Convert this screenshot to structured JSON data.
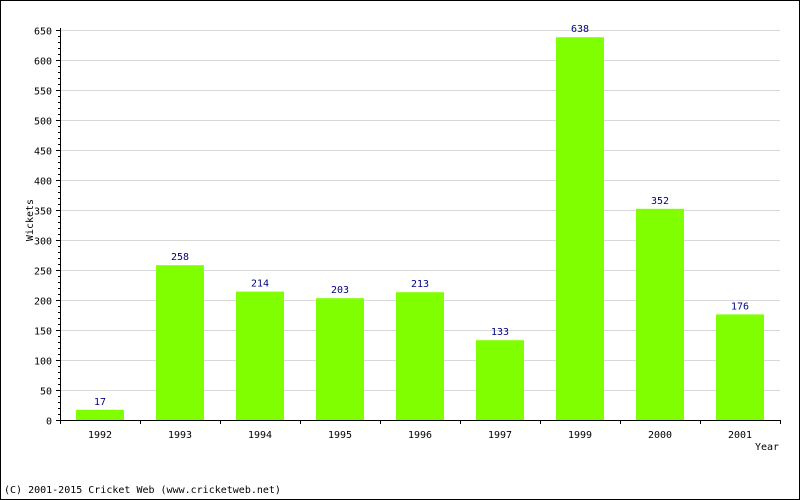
{
  "chart_data": {
    "type": "bar",
    "title": "",
    "xlabel": "Year",
    "ylabel": "Wickets",
    "categories": [
      "1992",
      "1993",
      "1994",
      "1995",
      "1996",
      "1997",
      "1999",
      "2000",
      "2001"
    ],
    "values": [
      17,
      258,
      214,
      203,
      213,
      133,
      638,
      352,
      176
    ],
    "data_labels": [
      "17",
      "258",
      "214",
      "203",
      "213",
      "133",
      "638",
      "352",
      "176"
    ],
    "ylim": [
      0,
      650
    ],
    "yticks": [
      0,
      50,
      100,
      150,
      200,
      250,
      300,
      350,
      400,
      450,
      500,
      550,
      600,
      650
    ],
    "grid": true,
    "legend": "none",
    "colors": {
      "bar": "#80ff00",
      "value_label": "#000080",
      "grid": "#d8d8d8",
      "axis": "#000000"
    }
  },
  "footer": {
    "copyright": "(C) 2001-2015 Cricket Web (www.cricketweb.net)"
  }
}
